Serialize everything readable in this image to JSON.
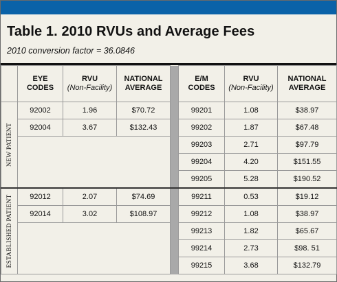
{
  "title": "Table 1. 2010 RVUs and Average Fees",
  "subtitle": "2010 conversion factor = 36.0846",
  "headers": {
    "eye_codes": [
      "EYE",
      "CODES"
    ],
    "rvu": [
      "RVU",
      "(Non-Facility)"
    ],
    "national_average": [
      "NATIONAL",
      "AVERAGE"
    ],
    "em_codes": [
      "E/M",
      "CODES"
    ],
    "rvu2": [
      "RVU",
      "(Non-Facility)"
    ],
    "national_average2": [
      "NATIONAL",
      "AVERAGE"
    ]
  },
  "groups": [
    {
      "label": "NEW PATIENT",
      "eye_rows": [
        {
          "code": "92002",
          "rvu": "1.96",
          "avg": "$70.72"
        },
        {
          "code": "92004",
          "rvu": "3.67",
          "avg": "$132.43"
        }
      ],
      "em_rows": [
        {
          "code": "99201",
          "rvu": "1.08",
          "avg": "$38.97"
        },
        {
          "code": "99202",
          "rvu": "1.87",
          "avg": "$67.48"
        },
        {
          "code": "99203",
          "rvu": "2.71",
          "avg": "$97.79"
        },
        {
          "code": "99204",
          "rvu": "4.20",
          "avg": "$151.55"
        },
        {
          "code": "99205",
          "rvu": "5.28",
          "avg": "$190.52"
        }
      ]
    },
    {
      "label": "ESTABLISHED PATIENT",
      "eye_rows": [
        {
          "code": "92012",
          "rvu": "2.07",
          "avg": "$74.69"
        },
        {
          "code": "92014",
          "rvu": "3.02",
          "avg": "$108.97"
        }
      ],
      "em_rows": [
        {
          "code": "99211",
          "rvu": "0.53",
          "avg": "$19.12"
        },
        {
          "code": "99212",
          "rvu": "1.08",
          "avg": "$38.97"
        },
        {
          "code": "99213",
          "rvu": "1.82",
          "avg": "$65.67"
        },
        {
          "code": "99214",
          "rvu": "2.73",
          "avg": "$98. 51"
        },
        {
          "code": "99215",
          "rvu": "3.68",
          "avg": "$132.79"
        }
      ]
    }
  ],
  "colors": {
    "top_bar": "#0a62a8",
    "background": "#f2f0e8",
    "divider_column": "#a9a9a9"
  }
}
